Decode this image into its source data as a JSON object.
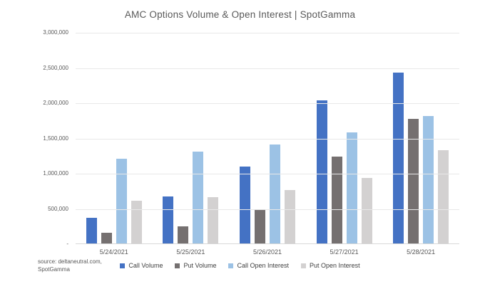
{
  "title": "AMC Options Volume & Open Interest | SpotGamma",
  "source_note": {
    "line1": "source: deltaneutral.com,",
    "line2": "SpotGamma"
  },
  "chart_data": {
    "type": "bar",
    "title": "AMC Options Volume & Open Interest | SpotGamma",
    "categories": [
      "5/24/2021",
      "5/25/2021",
      "5/26/2021",
      "5/27/2021",
      "5/28/2021"
    ],
    "series": [
      {
        "name": "Call Volume",
        "color": "#4472C4",
        "values": [
          375000,
          680000,
          1105000,
          2045000,
          2430000
        ]
      },
      {
        "name": "Put Volume",
        "color": "#757070",
        "values": [
          160000,
          255000,
          490000,
          1245000,
          1780000
        ]
      },
      {
        "name": "Call Open Interest",
        "color": "#9CC2E5",
        "values": [
          1210000,
          1315000,
          1415000,
          1585000,
          1820000
        ]
      },
      {
        "name": "Put Open Interest",
        "color": "#D3D1D1",
        "values": [
          615000,
          670000,
          770000,
          935000,
          1330000
        ]
      }
    ],
    "ylim": [
      0,
      3000000
    ],
    "ytick_interval": 500000,
    "ytick_labels": [
      "3,000,000",
      "2,500,000",
      "2,000,000",
      "1,500,000",
      "1,000,000",
      "500,000",
      "-"
    ],
    "xlabel": "",
    "ylabel": "",
    "grid": true,
    "legend_position": "bottom"
  }
}
